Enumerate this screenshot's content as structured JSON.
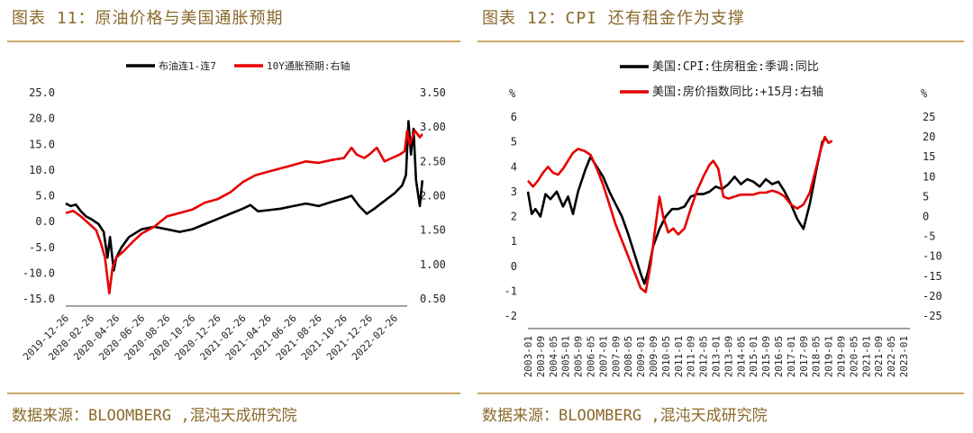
{
  "left_panel": {
    "title": "图表 11：原油价格与美国通胀预期",
    "source": "数据来源：BLOOMBERG ,混沌天成研究院"
  },
  "right_panel": {
    "title": "图表 12：CPI 还有租金作为支撑",
    "source": "数据来源：BLOOMBERG ,混沌天成研究院"
  },
  "chart_data": [
    {
      "type": "line",
      "title": "",
      "x_ticks": [
        "2019-12-26",
        "2020-02-26",
        "2020-04-26",
        "2020-06-26",
        "2020-08-26",
        "2020-10-26",
        "2020-12-26",
        "2021-02-26",
        "2021-04-26",
        "2021-06-26",
        "2021-08-26",
        "2021-10-26",
        "2021-12-26",
        "2022-02-26"
      ],
      "ylim_left": [
        -15,
        25
      ],
      "yticks_left": [
        "25.0",
        "20.0",
        "15.0",
        "10.0",
        "5.0",
        "0.0",
        "-5.0",
        "-10.0",
        "-15.0"
      ],
      "ylim_right": [
        0.5,
        3.5
      ],
      "yticks_right": [
        "3.50",
        "3.00",
        "2.50",
        "2.00",
        "1.50",
        "1.00",
        "0.50"
      ],
      "legend_position": "top",
      "series": [
        {
          "name": "布油连1-连7",
          "axis": "left",
          "color": "#000000",
          "points": [
            [
              0,
              3.5
            ],
            [
              0.2,
              3.0
            ],
            [
              0.4,
              3.3
            ],
            [
              0.6,
              2.0
            ],
            [
              0.8,
              1.0
            ],
            [
              1.0,
              0.5
            ],
            [
              1.3,
              -0.5
            ],
            [
              1.5,
              -2.0
            ],
            [
              1.65,
              -7.0
            ],
            [
              1.75,
              -3.0
            ],
            [
              1.9,
              -9.5
            ],
            [
              2.0,
              -7.0
            ],
            [
              2.2,
              -5.0
            ],
            [
              2.5,
              -3.0
            ],
            [
              3.0,
              -1.5
            ],
            [
              3.5,
              -1.0
            ],
            [
              4.0,
              -1.5
            ],
            [
              4.5,
              -2.0
            ],
            [
              5.0,
              -1.5
            ],
            [
              5.5,
              -0.5
            ],
            [
              6.0,
              0.5
            ],
            [
              6.5,
              1.5
            ],
            [
              7.0,
              2.5
            ],
            [
              7.3,
              3.2
            ],
            [
              7.6,
              2.0
            ],
            [
              8.0,
              2.2
            ],
            [
              8.5,
              2.5
            ],
            [
              9.0,
              3.0
            ],
            [
              9.5,
              3.5
            ],
            [
              10.0,
              3.0
            ],
            [
              10.5,
              3.8
            ],
            [
              11.0,
              4.5
            ],
            [
              11.3,
              5.0
            ],
            [
              11.6,
              3.0
            ],
            [
              11.9,
              1.5
            ],
            [
              12.2,
              2.5
            ],
            [
              12.6,
              4.0
            ],
            [
              13.0,
              5.5
            ],
            [
              13.3,
              7.0
            ],
            [
              13.45,
              9.0
            ],
            [
              13.55,
              19.5
            ],
            [
              13.65,
              13.0
            ],
            [
              13.75,
              18.0
            ],
            [
              13.85,
              8.0
            ],
            [
              14.0,
              3.0
            ],
            [
              14.1,
              8.0
            ]
          ]
        },
        {
          "name": "10Y通胀预期:右轴",
          "axis": "right",
          "color": "#e60000",
          "points": [
            [
              0,
              1.75
            ],
            [
              0.3,
              1.78
            ],
            [
              0.6,
              1.7
            ],
            [
              0.9,
              1.6
            ],
            [
              1.2,
              1.5
            ],
            [
              1.4,
              1.3
            ],
            [
              1.55,
              1.1
            ],
            [
              1.65,
              0.8
            ],
            [
              1.72,
              0.58
            ],
            [
              1.85,
              0.95
            ],
            [
              2.0,
              1.1
            ],
            [
              2.3,
              1.2
            ],
            [
              2.7,
              1.35
            ],
            [
              3.0,
              1.45
            ],
            [
              3.5,
              1.55
            ],
            [
              4.0,
              1.7
            ],
            [
              4.5,
              1.75
            ],
            [
              5.0,
              1.8
            ],
            [
              5.5,
              1.9
            ],
            [
              6.0,
              1.95
            ],
            [
              6.5,
              2.05
            ],
            [
              7.0,
              2.2
            ],
            [
              7.5,
              2.3
            ],
            [
              8.0,
              2.35
            ],
            [
              8.5,
              2.4
            ],
            [
              9.0,
              2.45
            ],
            [
              9.5,
              2.5
            ],
            [
              10.0,
              2.48
            ],
            [
              10.5,
              2.52
            ],
            [
              11.0,
              2.55
            ],
            [
              11.3,
              2.7
            ],
            [
              11.5,
              2.6
            ],
            [
              11.8,
              2.55
            ],
            [
              12.0,
              2.6
            ],
            [
              12.3,
              2.7
            ],
            [
              12.6,
              2.5
            ],
            [
              12.9,
              2.55
            ],
            [
              13.2,
              2.6
            ],
            [
              13.4,
              2.65
            ],
            [
              13.5,
              2.95
            ],
            [
              13.6,
              2.75
            ],
            [
              13.8,
              2.95
            ],
            [
              14.0,
              2.85
            ],
            [
              14.1,
              2.9
            ]
          ]
        }
      ]
    },
    {
      "type": "line",
      "title": "",
      "x_ticks": [
        "2003-01",
        "2003-09",
        "2004-05",
        "2005-01",
        "2005-09",
        "2006-05",
        "2007-01",
        "2007-09",
        "2008-05",
        "2009-01",
        "2009-09",
        "2010-05",
        "2011-01",
        "2011-09",
        "2012-05",
        "2013-01",
        "2013-09",
        "2014-05",
        "2015-01",
        "2015-09",
        "2016-05",
        "2017-01",
        "2017-09",
        "2018-05",
        "2019-01",
        "2019-09",
        "2020-05",
        "2021-01",
        "2021-09",
        "2022-05",
        "2023-01"
      ],
      "ylabel_left": "%",
      "ylabel_right": "%",
      "ylim_left": [
        -2,
        6
      ],
      "yticks_left": [
        "6",
        "5",
        "4",
        "3",
        "2",
        "1",
        "0",
        "-1",
        "-2"
      ],
      "ylim_right": [
        -25,
        25
      ],
      "yticks_right": [
        "25",
        "20",
        "15",
        "10",
        "5",
        "0",
        "-5",
        "-10",
        "-15",
        "-20",
        "-25"
      ],
      "legend_position": "top",
      "series": [
        {
          "name": "美国:CPI:住房租金:季调:同比",
          "axis": "left",
          "color": "#000000",
          "points": [
            [
              0,
              3.0
            ],
            [
              0.3,
              2.1
            ],
            [
              0.6,
              2.3
            ],
            [
              1.0,
              2.0
            ],
            [
              1.4,
              2.9
            ],
            [
              1.8,
              2.7
            ],
            [
              2.3,
              3.0
            ],
            [
              2.8,
              2.4
            ],
            [
              3.2,
              2.8
            ],
            [
              3.6,
              2.1
            ],
            [
              4.0,
              3.0
            ],
            [
              4.6,
              3.9
            ],
            [
              5.0,
              4.4
            ],
            [
              5.5,
              4.0
            ],
            [
              6.0,
              3.6
            ],
            [
              6.5,
              3.0
            ],
            [
              7.0,
              2.5
            ],
            [
              7.5,
              2.0
            ],
            [
              8.0,
              1.3
            ],
            [
              8.5,
              0.5
            ],
            [
              9.0,
              -0.3
            ],
            [
              9.3,
              -0.7
            ],
            [
              9.6,
              -0.2
            ],
            [
              10.0,
              0.8
            ],
            [
              10.5,
              1.5
            ],
            [
              11.0,
              2.0
            ],
            [
              11.5,
              2.3
            ],
            [
              12.0,
              2.3
            ],
            [
              12.5,
              2.4
            ],
            [
              13.0,
              2.8
            ],
            [
              13.5,
              2.9
            ],
            [
              14.0,
              2.9
            ],
            [
              14.5,
              3.0
            ],
            [
              15.0,
              3.2
            ],
            [
              15.5,
              3.1
            ],
            [
              16.0,
              3.3
            ],
            [
              16.5,
              3.6
            ],
            [
              17.0,
              3.3
            ],
            [
              17.5,
              3.5
            ],
            [
              18.0,
              3.4
            ],
            [
              18.5,
              3.2
            ],
            [
              19.0,
              3.5
            ],
            [
              19.5,
              3.3
            ],
            [
              20.0,
              3.4
            ],
            [
              20.5,
              3.0
            ],
            [
              21.0,
              2.5
            ],
            [
              21.5,
              1.9
            ],
            [
              22.0,
              1.5
            ],
            [
              22.5,
              2.5
            ],
            [
              23.0,
              3.8
            ],
            [
              23.5,
              5.0
            ],
            [
              23.7,
              5.1
            ]
          ]
        },
        {
          "name": "美国:房价指数同比:+15月:右轴",
          "axis": "right",
          "color": "#e60000",
          "points": [
            [
              0,
              9
            ],
            [
              0.4,
              7.5
            ],
            [
              0.8,
              9
            ],
            [
              1.2,
              11
            ],
            [
              1.6,
              12.5
            ],
            [
              2.0,
              11
            ],
            [
              2.4,
              10.5
            ],
            [
              2.8,
              12
            ],
            [
              3.2,
              14
            ],
            [
              3.6,
              16
            ],
            [
              4.0,
              17
            ],
            [
              4.5,
              16.5
            ],
            [
              5.0,
              15.5
            ],
            [
              5.5,
              12
            ],
            [
              6.0,
              8
            ],
            [
              6.5,
              3
            ],
            [
              7.0,
              -2
            ],
            [
              7.5,
              -6
            ],
            [
              8.0,
              -10
            ],
            [
              8.5,
              -14
            ],
            [
              9.0,
              -18
            ],
            [
              9.4,
              -19
            ],
            [
              9.8,
              -12
            ],
            [
              10.2,
              -2
            ],
            [
              10.5,
              5
            ],
            [
              10.8,
              0
            ],
            [
              11.2,
              -4
            ],
            [
              11.6,
              -3
            ],
            [
              12.0,
              -4.5
            ],
            [
              12.5,
              -3
            ],
            [
              13.0,
              2
            ],
            [
              13.5,
              6.5
            ],
            [
              14.0,
              10
            ],
            [
              14.5,
              13
            ],
            [
              14.8,
              14
            ],
            [
              15.2,
              12
            ],
            [
              15.6,
              5
            ],
            [
              16.0,
              4.5
            ],
            [
              16.5,
              5
            ],
            [
              17.0,
              5.5
            ],
            [
              17.5,
              5.5
            ],
            [
              18.0,
              5.5
            ],
            [
              18.5,
              6
            ],
            [
              19.0,
              6
            ],
            [
              19.5,
              6.5
            ],
            [
              20.0,
              6
            ],
            [
              20.5,
              5
            ],
            [
              21.0,
              3
            ],
            [
              21.5,
              2
            ],
            [
              22.0,
              3
            ],
            [
              22.5,
              6
            ],
            [
              23.0,
              12
            ],
            [
              23.4,
              17
            ],
            [
              23.7,
              20
            ],
            [
              24.0,
              18.5
            ],
            [
              24.3,
              19
            ]
          ]
        }
      ]
    }
  ]
}
